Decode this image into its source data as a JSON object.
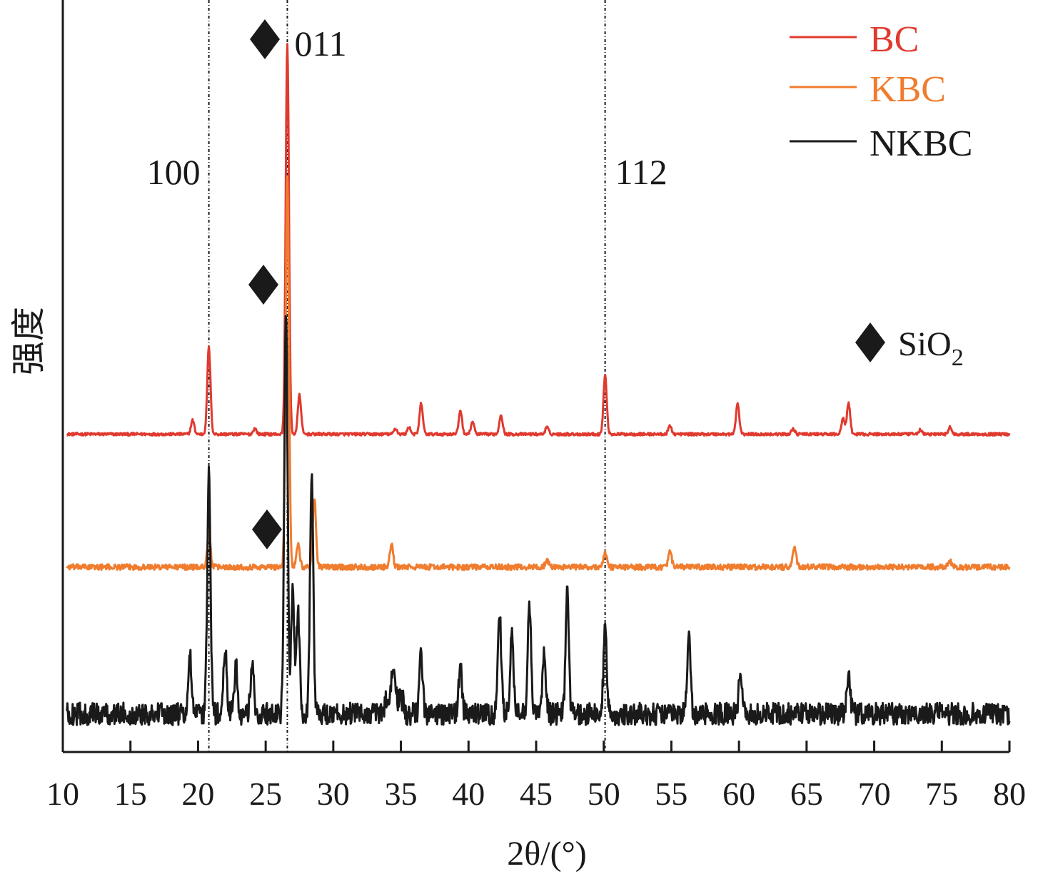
{
  "chart_data": {
    "type": "line",
    "xlabel": "2θ/(°)",
    "ylabel": "强度",
    "xlim": [
      10,
      80
    ],
    "x_ticks": [
      10,
      15,
      20,
      25,
      30,
      35,
      40,
      45,
      50,
      55,
      60,
      65,
      70,
      75,
      80
    ],
    "grid": false,
    "legend_position": "top-right",
    "reference_lines_2theta": [
      20.8,
      26.6,
      50.1
    ],
    "peak_annotations": [
      {
        "label": "100",
        "two_theta": 20.8
      },
      {
        "label": "011",
        "two_theta": 26.6
      },
      {
        "label": "112",
        "two_theta": 50.1
      }
    ],
    "marker_legend": {
      "symbol": "◆",
      "label": "SiO",
      "subscript": "2"
    },
    "series": [
      {
        "name": "BC",
        "color": "#e03a2f",
        "baseline": 0.95,
        "noise": 0.02,
        "peaks": [
          [
            19.6,
            0.1
          ],
          [
            20.8,
            0.62
          ],
          [
            24.2,
            0.04
          ],
          [
            26.6,
            2.8
          ],
          [
            27.5,
            0.28
          ],
          [
            34.6,
            0.04
          ],
          [
            35.6,
            0.05
          ],
          [
            36.5,
            0.22
          ],
          [
            39.4,
            0.17
          ],
          [
            40.3,
            0.09
          ],
          [
            42.4,
            0.14
          ],
          [
            45.8,
            0.05
          ],
          [
            50.1,
            0.42
          ],
          [
            54.9,
            0.06
          ],
          [
            59.9,
            0.22
          ],
          [
            64.0,
            0.04
          ],
          [
            67.7,
            0.11
          ],
          [
            68.1,
            0.22
          ],
          [
            73.4,
            0.03
          ],
          [
            75.6,
            0.05
          ]
        ]
      },
      {
        "name": "KBC",
        "color": "#f07c2e",
        "baseline": 0.0,
        "noise": 0.04,
        "peaks": [
          [
            20.8,
            0.24
          ],
          [
            26.6,
            2.78
          ],
          [
            27.4,
            0.17
          ],
          [
            28.6,
            0.5
          ],
          [
            34.3,
            0.16
          ],
          [
            45.8,
            0.05
          ],
          [
            50.1,
            0.1
          ],
          [
            54.9,
            0.11
          ],
          [
            64.1,
            0.15
          ],
          [
            75.6,
            0.04
          ]
        ]
      },
      {
        "name": "NKBC",
        "color": "#1a1a1a",
        "baseline": -1.05,
        "noise": 0.16,
        "peaks": [
          [
            19.4,
            0.4
          ],
          [
            20.8,
            1.7
          ],
          [
            22.0,
            0.45
          ],
          [
            22.8,
            0.35
          ],
          [
            24.0,
            0.35
          ],
          [
            26.5,
            2.9
          ],
          [
            27.0,
            0.85
          ],
          [
            27.4,
            0.72
          ],
          [
            28.4,
            1.7
          ],
          [
            34.4,
            0.25
          ],
          [
            36.5,
            0.42
          ],
          [
            39.4,
            0.35
          ],
          [
            42.3,
            0.7
          ],
          [
            43.2,
            0.6
          ],
          [
            44.5,
            0.8
          ],
          [
            45.6,
            0.45
          ],
          [
            47.3,
            0.88
          ],
          [
            50.1,
            0.58
          ],
          [
            56.3,
            0.55
          ],
          [
            60.1,
            0.32
          ],
          [
            68.1,
            0.3
          ]
        ]
      }
    ]
  }
}
